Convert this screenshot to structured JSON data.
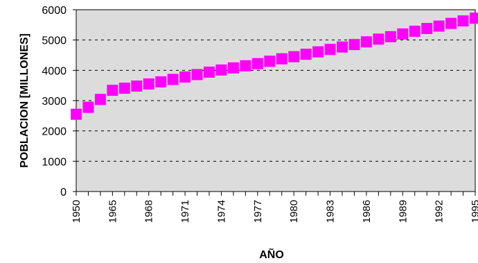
{
  "chart_data": {
    "type": "scatter",
    "xlabel": "AÑO",
    "ylabel": "POBLACION [MILLONES]",
    "ylim": [
      0,
      6000
    ],
    "yticks": [
      0,
      1000,
      2000,
      3000,
      4000,
      5000,
      6000
    ],
    "x_tick_labels": [
      "1950",
      "1965",
      "1968",
      "1971",
      "1974",
      "1977",
      "1980",
      "1983",
      "1986",
      "1989",
      "1992",
      "1995"
    ],
    "grid": "horizontal dashed",
    "plot_background": "#dcdcdc",
    "marker_color": "#ff00ff",
    "marker_shape": "square",
    "series": [
      {
        "x": [
          1950,
          1955,
          1960,
          1965,
          1966,
          1967,
          1968,
          1969,
          1970,
          1971,
          1972,
          1973,
          1974,
          1975,
          1976,
          1977,
          1978,
          1979,
          1980,
          1981,
          1982,
          1983,
          1984,
          1985,
          1986,
          1987,
          1988,
          1989,
          1990,
          1991,
          1992,
          1993,
          1994,
          1995
        ],
        "values": [
          2550,
          2780,
          3040,
          3340,
          3410,
          3480,
          3550,
          3620,
          3700,
          3780,
          3860,
          3940,
          4010,
          4080,
          4150,
          4220,
          4300,
          4380,
          4450,
          4530,
          4610,
          4690,
          4770,
          4850,
          4940,
          5030,
          5110,
          5200,
          5290,
          5380,
          5460,
          5550,
          5630,
          5720
        ]
      }
    ]
  }
}
